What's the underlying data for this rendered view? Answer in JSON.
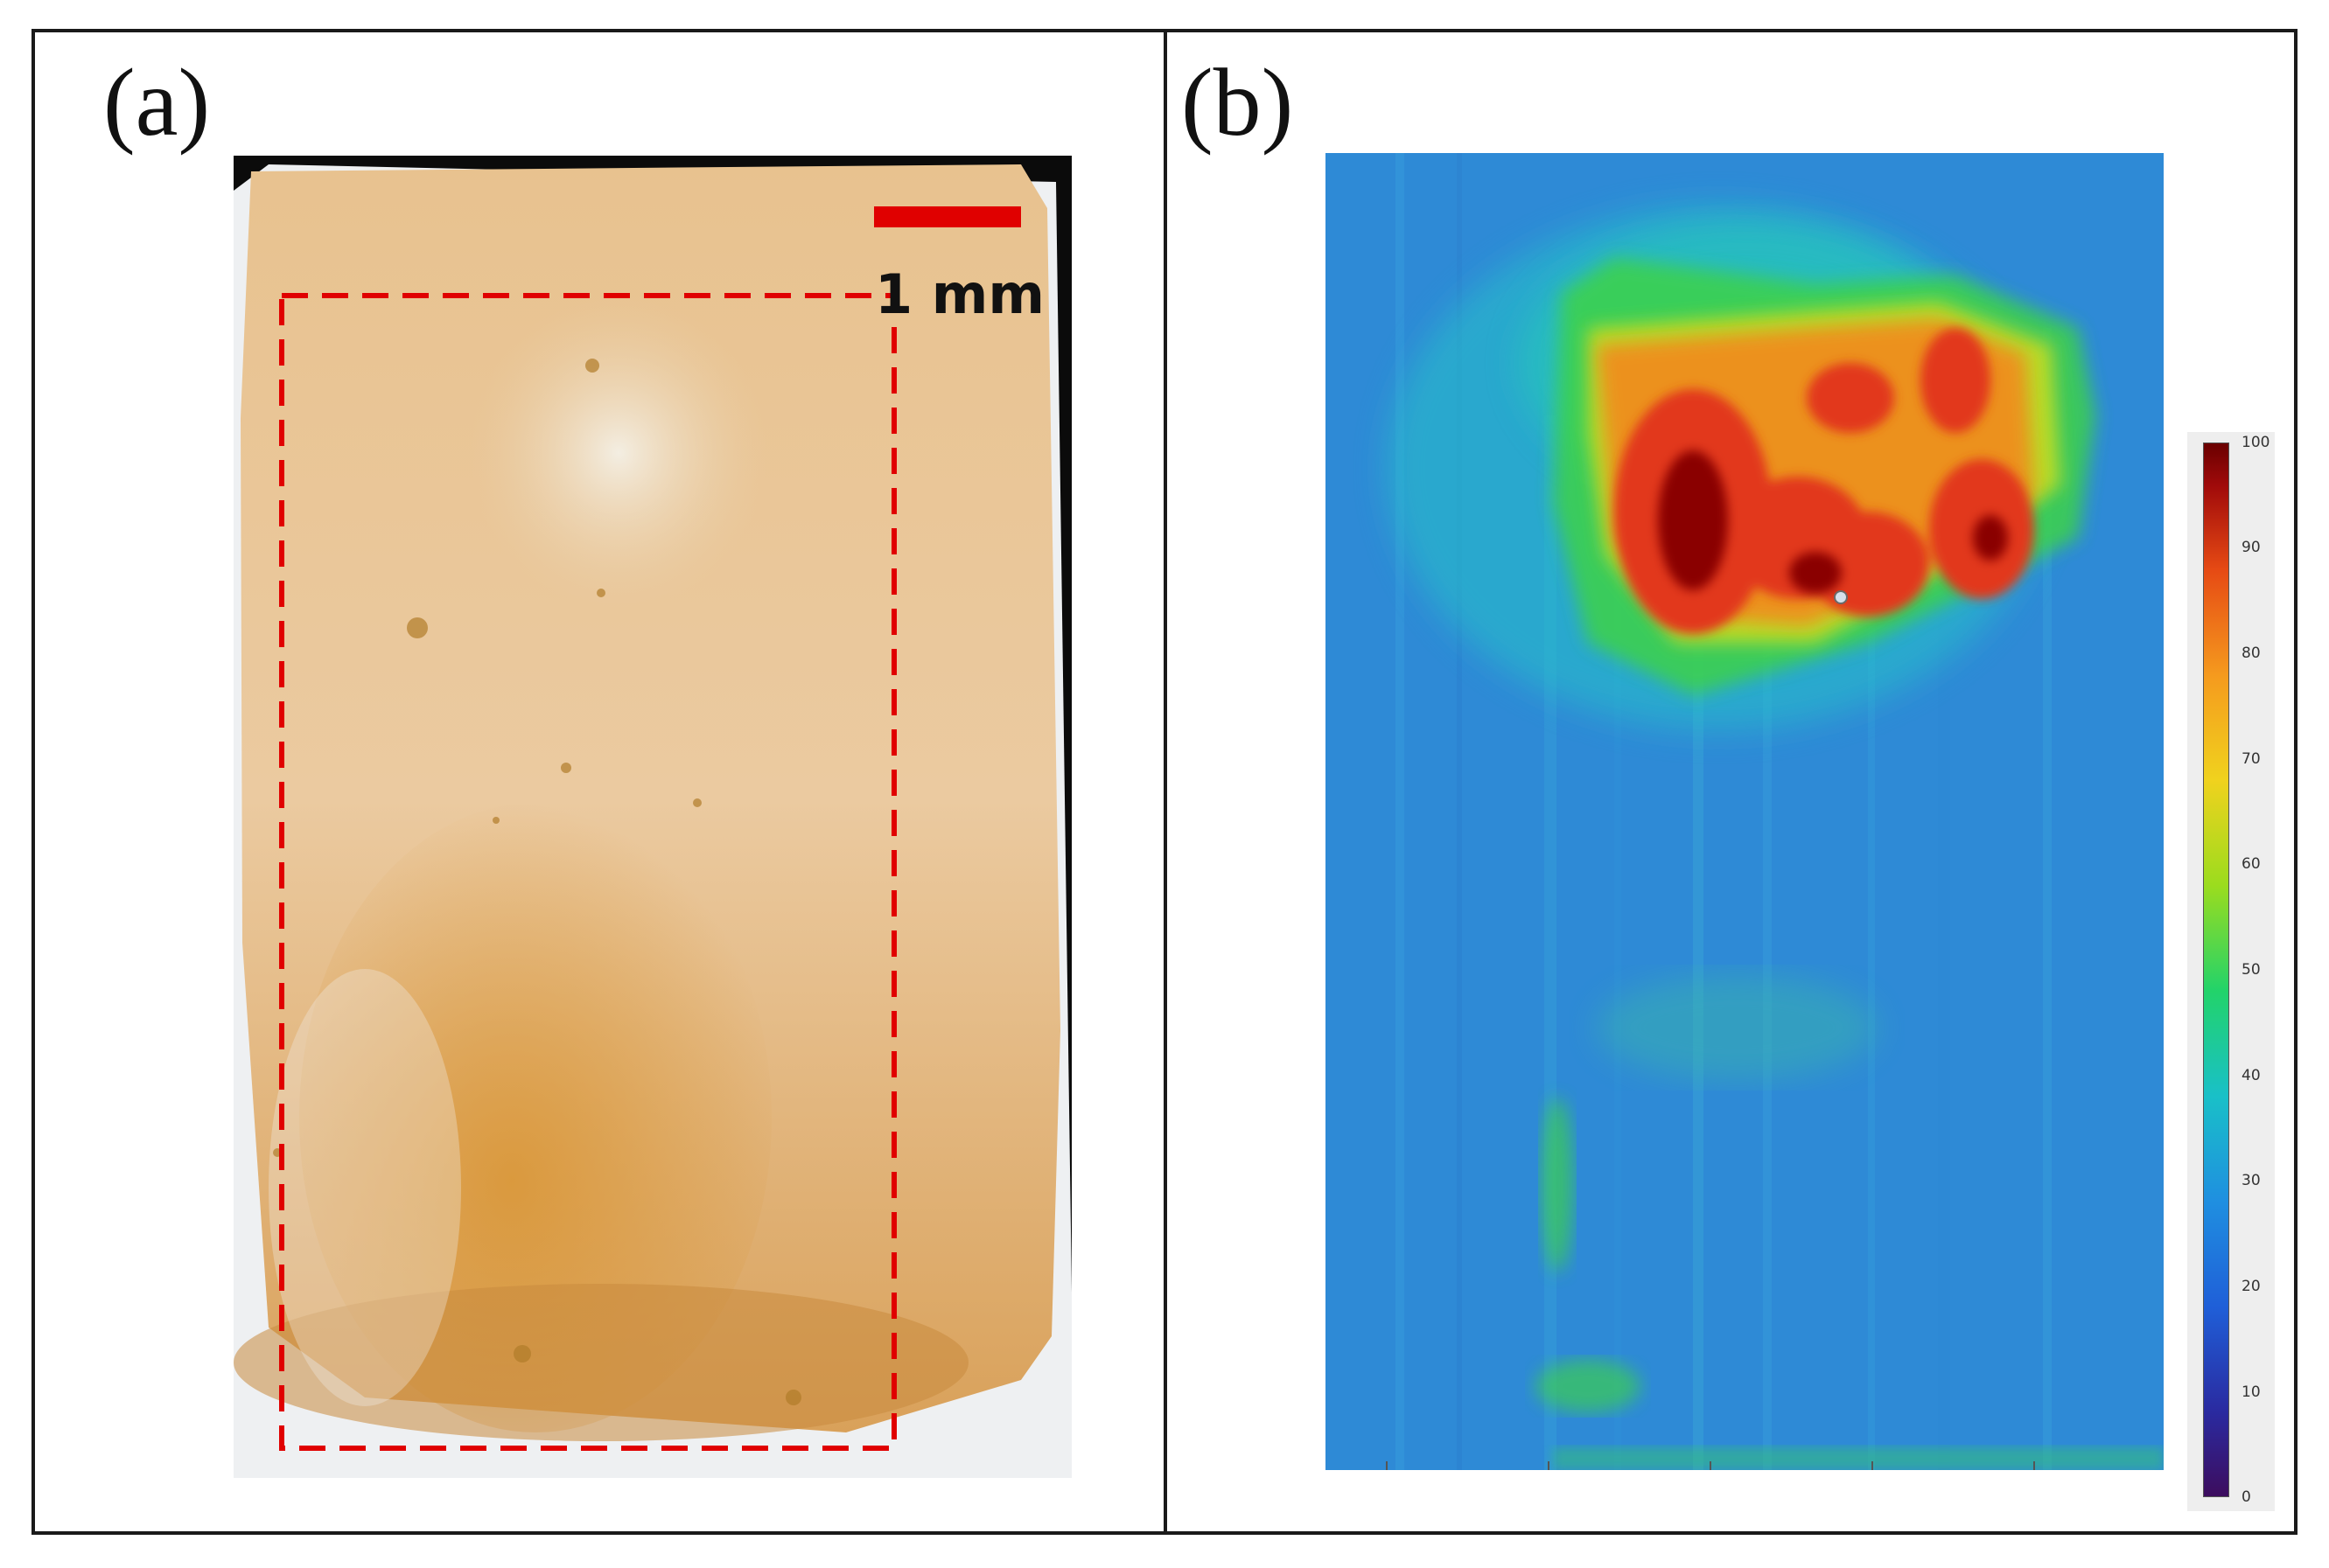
{
  "panels": {
    "a": {
      "label": "(a)",
      "scale_bar": {
        "text": "1 mm",
        "color": "#e00000"
      }
    },
    "b": {
      "label": "(b)"
    }
  },
  "colorbar": {
    "ticks": [
      "100",
      "90",
      "80",
      "70",
      "60",
      "50",
      "40",
      "30",
      "20",
      "10",
      "0"
    ],
    "colormap": "jet"
  },
  "colors": {
    "frame": "#1a1a1a",
    "dashed_roi": "#e00000",
    "heat_background": "#2e8ad6"
  }
}
